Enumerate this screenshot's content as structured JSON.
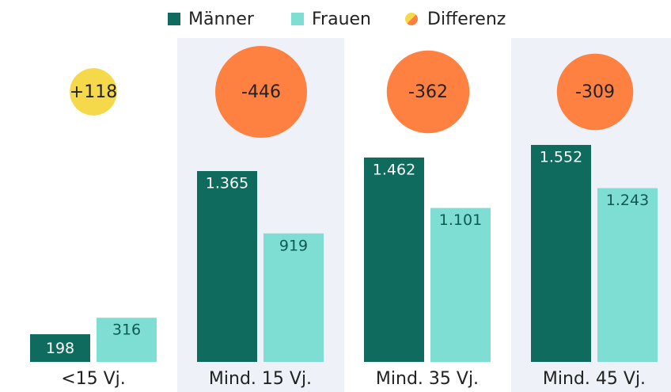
{
  "chart_data": {
    "type": "bar",
    "categories": [
      "<15 Vj.",
      "Mind. 15 Vj.",
      "Mind. 35 Vj.",
      "Mind. 45 Vj."
    ],
    "series": [
      {
        "name": "Männer",
        "color": "#0e6b5d",
        "label_color": "#ffffff",
        "values": [
          198,
          1365,
          1462,
          1552
        ],
        "value_labels": [
          "198",
          "1.365",
          "1.462",
          "1.552"
        ]
      },
      {
        "name": "Frauen",
        "color": "#7fded4",
        "label_color": "#0e5a50",
        "values": [
          316,
          919,
          1101,
          1243
        ],
        "value_labels": [
          "316",
          "919",
          "1.101",
          "1.243"
        ]
      }
    ],
    "difference": {
      "name": "Differenz",
      "positive_color": "#f5d94a",
      "negative_color": "#fe8142",
      "values": [
        118,
        -446,
        -362,
        -309
      ],
      "value_labels": [
        "+118",
        "-446",
        "-362",
        "-309"
      ]
    }
  }
}
